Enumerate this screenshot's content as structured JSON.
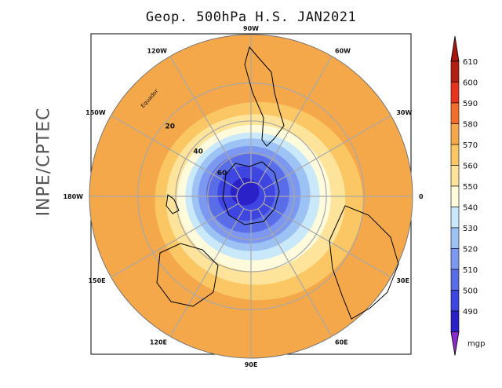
{
  "title": "Geop. 500hPa H.S. JAN2021",
  "side_label": "INPE/CPTEC",
  "map": {
    "longitude_labels": [
      {
        "id": "lon-90w",
        "text": "90W",
        "deg": 0
      },
      {
        "id": "lon-60w",
        "text": "60W",
        "deg": 30
      },
      {
        "id": "lon-30w",
        "text": "30W",
        "deg": 60
      },
      {
        "id": "lon-0",
        "text": "0",
        "deg": 90
      },
      {
        "id": "lon-30e",
        "text": "30E",
        "deg": 120
      },
      {
        "id": "lon-60e",
        "text": "60E",
        "deg": 150
      },
      {
        "id": "lon-90e",
        "text": "90E",
        "deg": 180
      },
      {
        "id": "lon-120e",
        "text": "120E",
        "deg": 210
      },
      {
        "id": "lon-150e",
        "text": "150E",
        "deg": 240
      },
      {
        "id": "lon-180w",
        "text": "180W",
        "deg": 270
      },
      {
        "id": "lon-150w",
        "text": "150W",
        "deg": 300
      },
      {
        "id": "lon-120w",
        "text": "120W",
        "deg": 330
      }
    ],
    "latitude_labels": [
      {
        "id": "lat-20",
        "text": "20",
        "lat": -20
      },
      {
        "id": "lat-40",
        "text": "40",
        "lat": -40
      },
      {
        "id": "lat-60",
        "text": "60",
        "lat": -60
      }
    ],
    "equator_label": "Equador",
    "colors": {
      "ocean_fill": "#f5a84a",
      "grid": "#a8a8a8",
      "coast": "#000000"
    }
  },
  "colorbar": {
    "unit": "mgp",
    "levels": [
      {
        "label": "610",
        "color": "#b41f14"
      },
      {
        "label": "600",
        "color": "#e8341e"
      },
      {
        "label": "590",
        "color": "#f26e2a"
      },
      {
        "label": "580",
        "color": "#f5a84a"
      },
      {
        "label": "570",
        "color": "#fac764"
      },
      {
        "label": "560",
        "color": "#fde49a"
      },
      {
        "label": "550",
        "color": "#fdfbdc"
      },
      {
        "label": "540",
        "color": "#c9e8fa"
      },
      {
        "label": "530",
        "color": "#9dc3f5"
      },
      {
        "label": "520",
        "color": "#7d98f0"
      },
      {
        "label": "510",
        "color": "#5a6de8"
      },
      {
        "label": "500",
        "color": "#3e45e0"
      },
      {
        "label": "490",
        "color": "#2a22c8"
      }
    ],
    "top_arrow_color": "#a51810",
    "bottom_arrow_color": "#8c2cc8"
  }
}
